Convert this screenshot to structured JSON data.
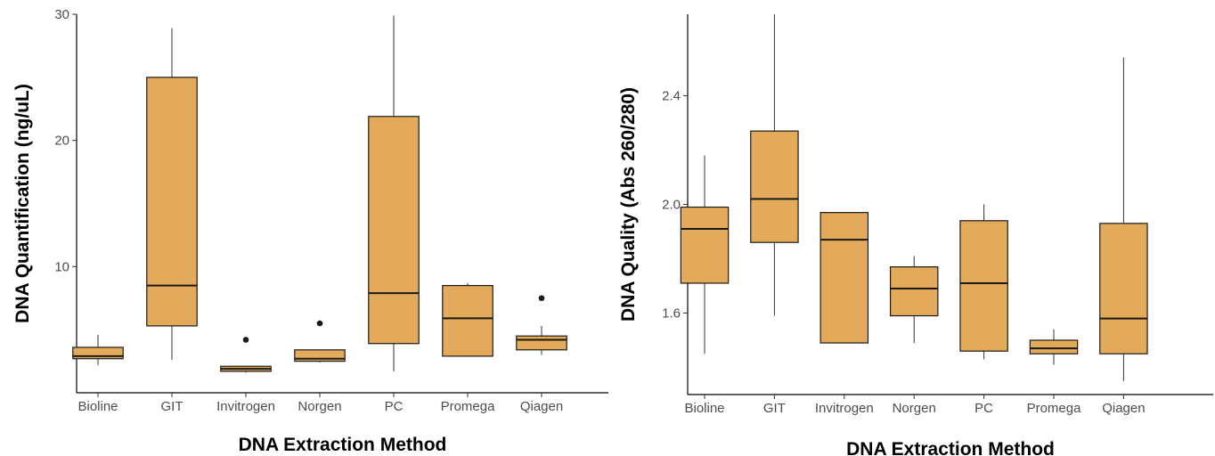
{
  "chart_data": [
    {
      "type": "boxplot",
      "xlabel": "DNA Extraction Method",
      "ylabel": "DNA Quantification (ng/uL)",
      "ylim": [
        0,
        30
      ],
      "yticks": [
        10,
        20,
        30
      ],
      "grid": false,
      "box_color": "#e2aa5a",
      "categories": [
        "Bioline",
        "GIT",
        "Invitrogen",
        "Norgen",
        "PC",
        "Promega",
        "Qiagen"
      ],
      "boxes": [
        {
          "category": "Bioline",
          "whisker_low": 2.2,
          "q1": 2.7,
          "median": 2.9,
          "q3": 3.6,
          "whisker_high": 4.6,
          "outliers": []
        },
        {
          "category": "GIT",
          "whisker_low": 2.6,
          "q1": 5.3,
          "median": 8.5,
          "q3": 25.0,
          "whisker_high": 28.9,
          "outliers": []
        },
        {
          "category": "Invitrogen",
          "whisker_low": 1.6,
          "q1": 1.7,
          "median": 1.9,
          "q3": 2.1,
          "whisker_high": 2.1,
          "outliers": [
            4.2
          ]
        },
        {
          "category": "Norgen",
          "whisker_low": 2.4,
          "q1": 2.5,
          "median": 2.7,
          "q3": 3.4,
          "whisker_high": 3.4,
          "outliers": [
            5.5
          ]
        },
        {
          "category": "PC",
          "whisker_low": 1.7,
          "q1": 3.9,
          "median": 7.9,
          "q3": 21.9,
          "whisker_high": 29.9,
          "outliers": []
        },
        {
          "category": "Promega",
          "whisker_low": 2.9,
          "q1": 2.9,
          "median": 5.9,
          "q3": 8.5,
          "whisker_high": 8.7,
          "outliers": []
        },
        {
          "category": "Qiagen",
          "whisker_low": 3.0,
          "q1": 3.4,
          "median": 4.2,
          "q3": 4.5,
          "whisker_high": 5.3,
          "outliers": [
            7.5
          ]
        }
      ]
    },
    {
      "type": "boxplot",
      "xlabel": "DNA Extraction Method",
      "ylabel": "DNA Quality (Abs 260/280)",
      "ylim": [
        1.3,
        2.7
      ],
      "yticks": [
        1.6,
        2.0,
        2.4
      ],
      "ytick_labels": [
        "1.6",
        "2.0",
        "2.4"
      ],
      "grid": false,
      "box_color": "#e2aa5a",
      "categories": [
        "Bioline",
        "GIT",
        "Invitrogen",
        "Norgen",
        "PC",
        "Promega",
        "Qiagen"
      ],
      "boxes": [
        {
          "category": "Bioline",
          "whisker_low": 1.45,
          "q1": 1.71,
          "median": 1.91,
          "q3": 1.99,
          "whisker_high": 2.18,
          "outliers": []
        },
        {
          "category": "GIT",
          "whisker_low": 1.59,
          "q1": 1.86,
          "median": 2.02,
          "q3": 2.27,
          "whisker_high": 2.7,
          "outliers": []
        },
        {
          "category": "Invitrogen",
          "whisker_low": 1.49,
          "q1": 1.49,
          "median": 1.87,
          "q3": 1.97,
          "whisker_high": 1.97,
          "outliers": []
        },
        {
          "category": "Norgen",
          "whisker_low": 1.49,
          "q1": 1.59,
          "median": 1.69,
          "q3": 1.77,
          "whisker_high": 1.81,
          "outliers": []
        },
        {
          "category": "PC",
          "whisker_low": 1.43,
          "q1": 1.46,
          "median": 1.71,
          "q3": 1.94,
          "whisker_high": 2.0,
          "outliers": []
        },
        {
          "category": "Promega",
          "whisker_low": 1.41,
          "q1": 1.45,
          "median": 1.47,
          "q3": 1.5,
          "whisker_high": 1.54,
          "outliers": []
        },
        {
          "category": "Qiagen",
          "whisker_low": 1.35,
          "q1": 1.45,
          "median": 1.58,
          "q3": 1.93,
          "whisker_high": 2.54,
          "outliers": []
        }
      ]
    }
  ]
}
